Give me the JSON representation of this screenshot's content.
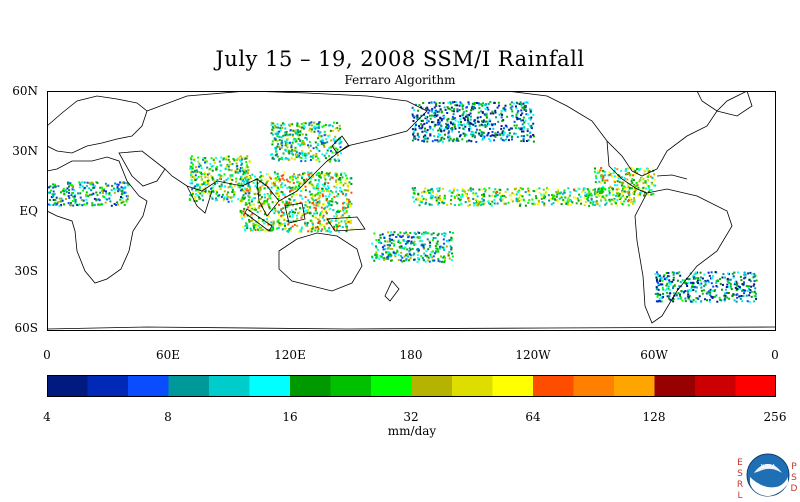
{
  "title": "July 15 – 19, 2008 SSM/I Rainfall",
  "subtitle": "Ferraro Algorithm",
  "lat_ticks": [
    "60N",
    "30N",
    "EQ",
    "30S",
    "60S"
  ],
  "lon_ticks": [
    "0",
    "60E",
    "120E",
    "180",
    "120W",
    "60W",
    "0"
  ],
  "colorbar": {
    "units": "mm/day",
    "tick_labels": [
      "4",
      "8",
      "16",
      "32",
      "64",
      "128",
      "256"
    ],
    "colors": [
      "#001a80",
      "#0029b8",
      "#0a4dff",
      "#009999",
      "#00cccc",
      "#00ffff",
      "#009900",
      "#00c000",
      "#00ff00",
      "#b3b300",
      "#dddd00",
      "#ffff00",
      "#ff4d00",
      "#ff8000",
      "#ffa500",
      "#990000",
      "#cc0000",
      "#ff0000"
    ]
  },
  "logo": {
    "left_letters": "ESRL",
    "right_letters": "PSD",
    "emblem_text": "NOAA"
  },
  "chart_data": {
    "type": "heatmap",
    "title": "July 15 – 19, 2008 SSM/I Rainfall",
    "subtitle": "Ferraro Algorithm",
    "x_axis": {
      "ticks": [
        "0",
        "60E",
        "120E",
        "180",
        "120W",
        "60W",
        "0"
      ],
      "range_deg_east": [
        0,
        360
      ]
    },
    "y_axis": {
      "ticks": [
        "60N",
        "30N",
        "EQ",
        "30S",
        "60S"
      ],
      "range_deg": [
        60,
        -60
      ]
    },
    "colorscale": {
      "units": "mm/day",
      "scale": "log2",
      "min": 4,
      "max": 256,
      "bins": 18
    },
    "rain_regions": [
      {
        "lon": [
          180,
          290
        ],
        "lat": [
          3,
          12
        ],
        "intensity": 24
      },
      {
        "lon": [
          270,
          300
        ],
        "lat": [
          8,
          22
        ],
        "intensity": 32
      },
      {
        "lon": [
          95,
          150
        ],
        "lat": [
          -10,
          20
        ],
        "intensity": 28
      },
      {
        "lon": [
          70,
          100
        ],
        "lat": [
          5,
          28
        ],
        "intensity": 20
      },
      {
        "lon": [
          0,
          40
        ],
        "lat": [
          3,
          15
        ],
        "intensity": 14
      },
      {
        "lon": [
          110,
          145
        ],
        "lat": [
          25,
          45
        ],
        "intensity": 18
      },
      {
        "lon": [
          160,
          200
        ],
        "lat": [
          -25,
          -10
        ],
        "intensity": 14
      },
      {
        "lon": [
          300,
          350
        ],
        "lat": [
          -45,
          -30
        ],
        "intensity": 10
      },
      {
        "lon": [
          180,
          240
        ],
        "lat": [
          35,
          55
        ],
        "intensity": 9
      }
    ]
  }
}
